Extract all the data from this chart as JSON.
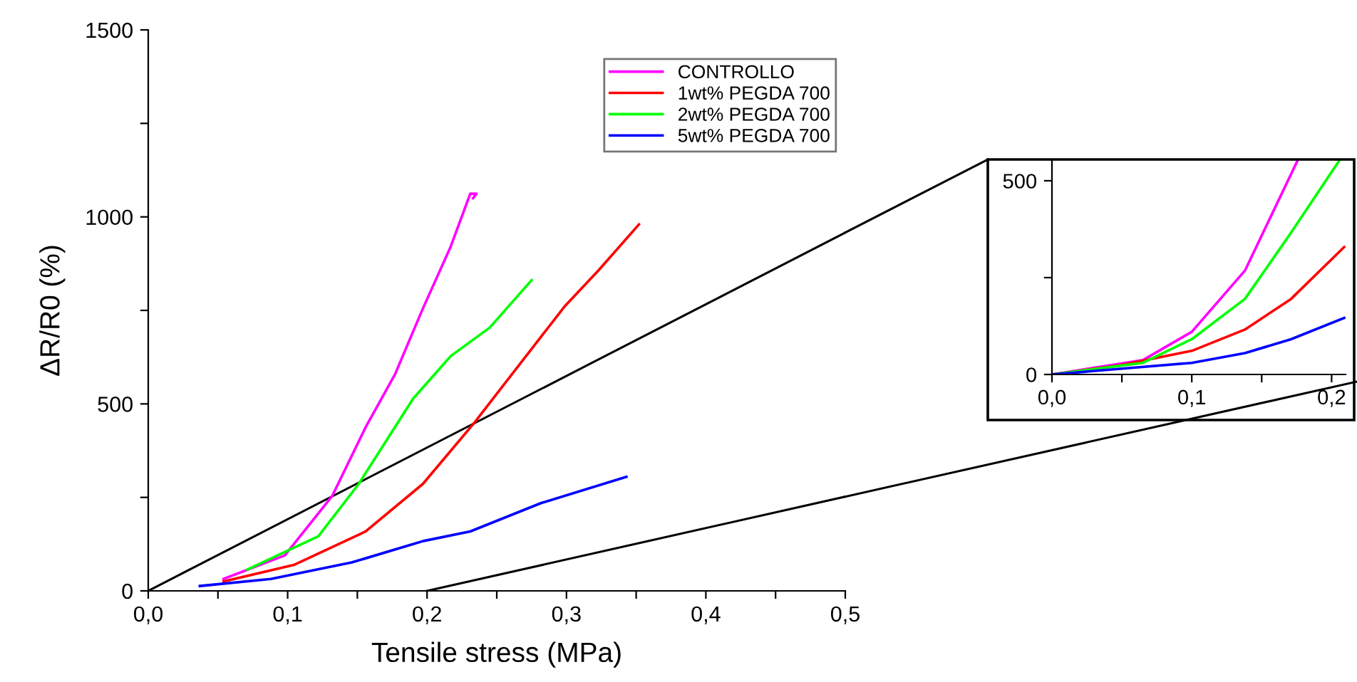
{
  "chart_data": [
    {
      "type": "line",
      "xlabel": "Tensile stress (MPa)",
      "ylabel": "ΔR/R0 (%)",
      "xlim": [
        0,
        0.5
      ],
      "ylim": [
        0,
        1500
      ],
      "xticks": [
        {
          "value": 0,
          "label": "0,0"
        },
        {
          "value": 0.05,
          "label": null
        },
        {
          "value": 0.1,
          "label": "0,1"
        },
        {
          "value": 0.15,
          "label": null
        },
        {
          "value": 0.2,
          "label": "0,2"
        },
        {
          "value": 0.25,
          "label": null
        },
        {
          "value": 0.3,
          "label": "0,3"
        },
        {
          "value": 0.35,
          "label": null
        },
        {
          "value": 0.4,
          "label": "0,4"
        },
        {
          "value": 0.45,
          "label": null
        },
        {
          "value": 0.5,
          "label": "0,5"
        }
      ],
      "yticks": [
        0,
        {
          "value": 250,
          "label": null
        },
        500,
        {
          "value": 750,
          "label": null
        },
        1000,
        {
          "value": 1250,
          "label": null
        },
        1500
      ],
      "legend": "top right",
      "grid": false,
      "marker": "none",
      "line_style": "solid",
      "series": [
        {
          "color": "#000000",
          "x": [
            0,
            0.5
          ],
          "values": [
            0,
            958
          ]
        },
        {
          "color": "#000000",
          "x": [
            0.2,
            0.5
          ],
          "values": [
            0,
            252
          ]
        },
        {
          "name": "CONTROLLO",
          "color": "#ff00ff",
          "x": [
            0.054,
            0.098,
            0.132,
            0.156,
            0.177,
            0.197,
            0.217,
            0.231,
            0.2355,
            0.233
          ],
          "values": [
            32,
            95,
            254,
            438,
            579,
            755,
            921,
            1062,
            1062,
            1050
          ]
        },
        {
          "name": "1wt% PEGDA 700",
          "color": "#ff0000",
          "x": [
            0.054,
            0.105,
            0.156,
            0.197,
            0.234,
            0.275,
            0.299,
            0.323,
            0.352
          ],
          "values": [
            25,
            70,
            159,
            286,
            450,
            647,
            762,
            857,
            980
          ]
        },
        {
          "name": "2wt% PEGDA 700",
          "color": "#00ff00",
          "x": [
            0.071,
            0.122,
            0.151,
            0.19,
            0.217,
            0.245,
            0.275
          ],
          "values": [
            57,
            146,
            286,
            514,
            628,
            704,
            831
          ]
        },
        {
          "name": "5wt% PEGDA 700",
          "color": "#0000ff",
          "x": [
            0.037,
            0.088,
            0.146,
            0.197,
            0.231,
            0.282,
            0.343
          ],
          "values": [
            13,
            32,
            76,
            133,
            159,
            235,
            305
          ]
        }
      ]
    },
    {
      "type": "line",
      "xlim": [
        0,
        0.21
      ],
      "ylim": [
        0,
        555
      ],
      "xticks": [
        {
          "value": 0,
          "label": "0,0"
        },
        {
          "value": 0.05,
          "label": null
        },
        {
          "value": 0.1,
          "label": "0,1"
        },
        {
          "value": 0.15,
          "label": null
        },
        {
          "value": 0.2,
          "label": "0,2"
        }
      ],
      "yticks": [
        0,
        {
          "value": 250,
          "label": null
        },
        500
      ],
      "grid": false,
      "marker": "none",
      "line_style": "solid",
      "series": [
        {
          "color": "#ff00ff",
          "x": [
            0,
            0.065,
            0.1,
            0.138,
            0.176
          ],
          "values": [
            0,
            37,
            110,
            268,
            555
          ]
        },
        {
          "color": "#ff0000",
          "x": [
            0,
            0.049,
            0.1,
            0.138,
            0.171,
            0.209
          ],
          "values": [
            0,
            24,
            61,
            116,
            195,
            329
          ]
        },
        {
          "color": "#00ff00",
          "x": [
            0,
            0.065,
            0.1,
            0.138,
            0.171,
            0.206
          ],
          "values": [
            0,
            30,
            91,
            195,
            366,
            555
          ]
        },
        {
          "color": "#0000ff",
          "x": [
            0,
            0.1,
            0.138,
            0.171,
            0.209
          ],
          "values": [
            0,
            30,
            55,
            91,
            146
          ]
        }
      ]
    }
  ]
}
